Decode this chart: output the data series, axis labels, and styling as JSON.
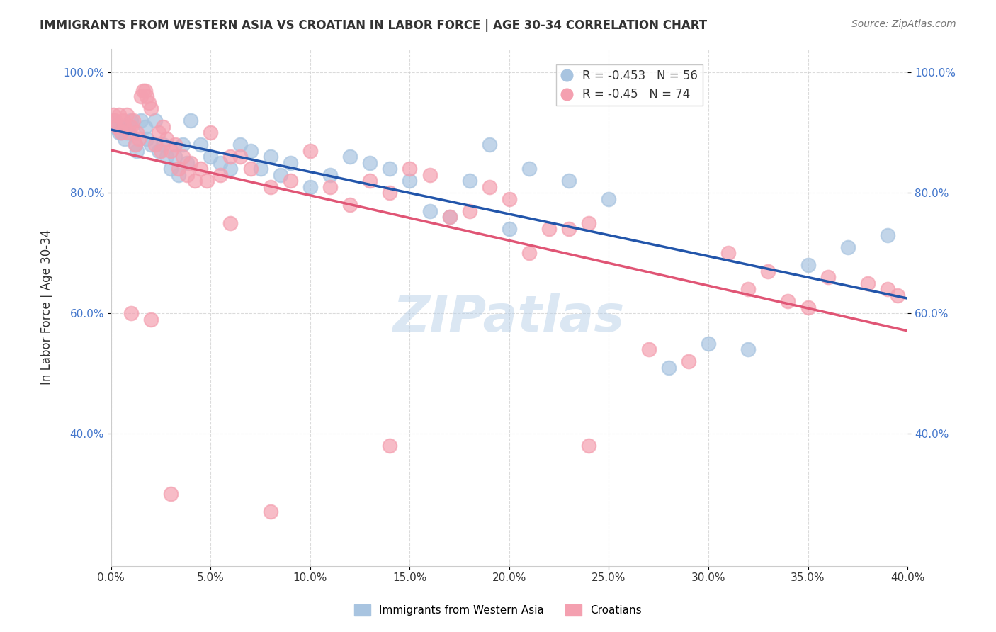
{
  "title": "IMMIGRANTS FROM WESTERN ASIA VS CROATIAN IN LABOR FORCE | AGE 30-34 CORRELATION CHART",
  "source": "Source: ZipAtlas.com",
  "xlabel": "",
  "ylabel": "In Labor Force | Age 30-34",
  "legend_label_blue": "Immigrants from Western Asia",
  "legend_label_pink": "Croatians",
  "r_blue": -0.453,
  "n_blue": 56,
  "r_pink": -0.45,
  "n_pink": 74,
  "color_blue": "#a8c4e0",
  "color_pink": "#f4a0b0",
  "line_color_blue": "#2255aa",
  "line_color_pink": "#e05575",
  "xlim": [
    0.0,
    0.4
  ],
  "ylim": [
    0.18,
    1.04
  ],
  "xticks": [
    0.0,
    0.05,
    0.1,
    0.15,
    0.2,
    0.25,
    0.3,
    0.35,
    0.4
  ],
  "yticks": [
    0.4,
    0.6,
    0.8,
    1.0
  ],
  "watermark": "ZIPatlas",
  "blue_x": [
    0.001,
    0.002,
    0.003,
    0.004,
    0.005,
    0.006,
    0.007,
    0.008,
    0.009,
    0.01,
    0.012,
    0.013,
    0.015,
    0.017,
    0.018,
    0.02,
    0.022,
    0.024,
    0.026,
    0.028,
    0.03,
    0.032,
    0.034,
    0.036,
    0.038,
    0.04,
    0.045,
    0.05,
    0.055,
    0.06,
    0.065,
    0.07,
    0.075,
    0.08,
    0.085,
    0.09,
    0.1,
    0.11,
    0.12,
    0.13,
    0.14,
    0.15,
    0.16,
    0.17,
    0.18,
    0.19,
    0.2,
    0.21,
    0.23,
    0.25,
    0.28,
    0.3,
    0.32,
    0.35,
    0.37,
    0.39
  ],
  "blue_y": [
    0.92,
    0.91,
    0.91,
    0.9,
    0.9,
    0.91,
    0.89,
    0.9,
    0.91,
    0.92,
    0.88,
    0.87,
    0.92,
    0.91,
    0.89,
    0.88,
    0.92,
    0.87,
    0.88,
    0.86,
    0.84,
    0.86,
    0.83,
    0.88,
    0.85,
    0.92,
    0.88,
    0.86,
    0.85,
    0.84,
    0.88,
    0.87,
    0.84,
    0.86,
    0.83,
    0.85,
    0.81,
    0.83,
    0.86,
    0.85,
    0.84,
    0.82,
    0.77,
    0.76,
    0.82,
    0.88,
    0.74,
    0.84,
    0.82,
    0.79,
    0.51,
    0.55,
    0.54,
    0.68,
    0.71,
    0.73
  ],
  "pink_x": [
    0.001,
    0.002,
    0.003,
    0.004,
    0.005,
    0.006,
    0.007,
    0.008,
    0.009,
    0.01,
    0.011,
    0.012,
    0.013,
    0.014,
    0.015,
    0.016,
    0.017,
    0.018,
    0.019,
    0.02,
    0.022,
    0.024,
    0.025,
    0.026,
    0.028,
    0.03,
    0.032,
    0.034,
    0.036,
    0.038,
    0.04,
    0.042,
    0.045,
    0.048,
    0.05,
    0.055,
    0.06,
    0.065,
    0.07,
    0.08,
    0.09,
    0.1,
    0.11,
    0.12,
    0.13,
    0.14,
    0.15,
    0.16,
    0.17,
    0.18,
    0.19,
    0.2,
    0.21,
    0.22,
    0.23,
    0.24,
    0.27,
    0.29,
    0.31,
    0.32,
    0.33,
    0.34,
    0.35,
    0.36,
    0.38,
    0.39,
    0.395,
    0.14,
    0.24,
    0.01,
    0.02,
    0.06,
    0.03,
    0.08
  ],
  "pink_y": [
    0.93,
    0.92,
    0.91,
    0.93,
    0.9,
    0.92,
    0.91,
    0.93,
    0.9,
    0.91,
    0.92,
    0.88,
    0.9,
    0.89,
    0.96,
    0.97,
    0.97,
    0.96,
    0.95,
    0.94,
    0.88,
    0.9,
    0.87,
    0.91,
    0.89,
    0.87,
    0.88,
    0.84,
    0.86,
    0.83,
    0.85,
    0.82,
    0.84,
    0.82,
    0.9,
    0.83,
    0.86,
    0.86,
    0.84,
    0.81,
    0.82,
    0.87,
    0.81,
    0.78,
    0.82,
    0.8,
    0.84,
    0.83,
    0.76,
    0.77,
    0.81,
    0.79,
    0.7,
    0.74,
    0.74,
    0.75,
    0.54,
    0.52,
    0.7,
    0.64,
    0.67,
    0.62,
    0.61,
    0.66,
    0.65,
    0.64,
    0.63,
    0.38,
    0.38,
    0.6,
    0.59,
    0.75,
    0.3,
    0.27
  ]
}
